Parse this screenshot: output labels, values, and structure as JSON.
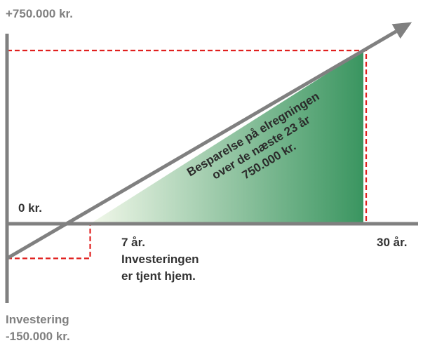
{
  "chart_data": {
    "type": "line",
    "series": [
      {
        "x": [
          0,
          7,
          30
        ],
        "y": [
          -150000,
          0,
          750000
        ]
      }
    ],
    "y_top_label": "+750.000 kr.",
    "y_zero_label": "0 kr.",
    "investment_label": [
      "Investering",
      "-150.000 kr."
    ],
    "breakeven_label": [
      "7 år.",
      "Investeringen",
      "er tjent hjem."
    ],
    "end_label": "30 år.",
    "savings_annotation": [
      "Besparelse på elregningen",
      "over de næste 23 år",
      "750.000 kr."
    ],
    "colors": {
      "axis": "#808080",
      "dashed": "#e0201f",
      "savings_start": "#f2f8ea",
      "savings_end": "#3a9560",
      "text_dark": "#333333",
      "text_gray": "#808080"
    }
  }
}
